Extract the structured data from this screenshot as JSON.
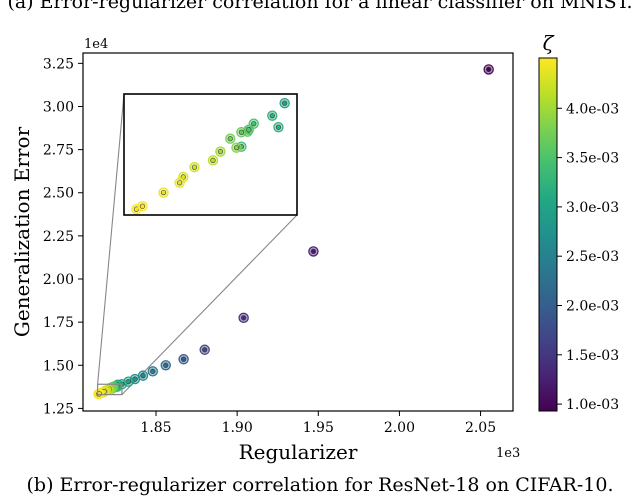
{
  "captions": {
    "top": "(a) Error-regularizer correlation for a linear classifier on MNIST.",
    "bottom": "(b) Error-regularizer correlation for ResNet-18 on CIFAR-10."
  },
  "chart_data": {
    "type": "scatter",
    "title": "",
    "xlabel": "Regularizer",
    "ylabel": "Generalization Error",
    "x_multiplier_label": "1e3",
    "y_multiplier_label": "1e4",
    "xlim": [
      1.805,
      2.07
    ],
    "ylim": [
      1.235,
      3.31
    ],
    "x_ticks": [
      1.85,
      1.9,
      1.95,
      2.0,
      2.05
    ],
    "x_tick_labels": [
      "1.85",
      "1.90",
      "1.95",
      "2.00",
      "2.05"
    ],
    "y_ticks": [
      1.25,
      1.5,
      1.75,
      2.0,
      2.25,
      2.5,
      2.75,
      3.0,
      3.25
    ],
    "y_tick_labels": [
      "1.25",
      "1.50",
      "1.75",
      "2.00",
      "2.25",
      "2.50",
      "2.75",
      "3.00",
      "3.25"
    ],
    "grid": false,
    "colorbar": {
      "label": "ζ",
      "colormap": "viridis",
      "range": [
        0.00093,
        0.00451
      ],
      "ticks": [
        0.001,
        0.0015,
        0.002,
        0.0025,
        0.003,
        0.0035,
        0.004
      ],
      "tick_labels": [
        "1.0e-03",
        "1.5e-03",
        "2.0e-03",
        "2.5e-03",
        "3.0e-03",
        "3.5e-03",
        "4.0e-03"
      ]
    },
    "points": [
      {
        "x": 2.055,
        "y": 3.215,
        "c": 0.00095
      },
      {
        "x": 1.947,
        "y": 2.16,
        "c": 0.0012
      },
      {
        "x": 1.904,
        "y": 1.775,
        "c": 0.0014
      },
      {
        "x": 1.88,
        "y": 1.59,
        "c": 0.00165
      },
      {
        "x": 1.867,
        "y": 1.535,
        "c": 0.0019
      },
      {
        "x": 1.856,
        "y": 1.5,
        "c": 0.00215
      },
      {
        "x": 1.848,
        "y": 1.465,
        "c": 0.0024
      },
      {
        "x": 1.842,
        "y": 1.44,
        "c": 0.0026
      },
      {
        "x": 1.837,
        "y": 1.42,
        "c": 0.00275
      },
      {
        "x": 1.833,
        "y": 1.405,
        "c": 0.0029
      },
      {
        "x": 1.829,
        "y": 1.39,
        "c": 0.00305
      },
      {
        "x": 1.826,
        "y": 1.375,
        "c": 0.0032
      },
      {
        "x": 1.823,
        "y": 1.365,
        "c": 0.0034
      },
      {
        "x": 1.8265,
        "y": 1.3873,
        "c": 0.003
      },
      {
        "x": 1.8255,
        "y": 1.3809,
        "c": 0.0032
      },
      {
        "x": 1.824,
        "y": 1.3768,
        "c": 0.00345
      },
      {
        "x": 1.8235,
        "y": 1.3727,
        "c": 0.0036
      },
      {
        "x": 1.8236,
        "y": 1.3737,
        "c": 0.00355
      },
      {
        "x": 1.823,
        "y": 1.3724,
        "c": 0.00365
      },
      {
        "x": 1.8221,
        "y": 1.3691,
        "c": 0.00375
      },
      {
        "x": 1.8226,
        "y": 1.3645,
        "c": 0.00385
      },
      {
        "x": 1.8213,
        "y": 1.3625,
        "c": 0.004
      },
      {
        "x": 1.8207,
        "y": 1.358,
        "c": 0.00415
      },
      {
        "x": 1.8192,
        "y": 1.3545,
        "c": 0.00425
      },
      {
        "x": 1.8183,
        "y": 1.3495,
        "c": 0.00435
      },
      {
        "x": 1.8167,
        "y": 1.3415,
        "c": 0.0044
      },
      {
        "x": 1.818,
        "y": 1.3465,
        "c": 0.00438
      },
      {
        "x": 1.8145,
        "y": 1.333,
        "c": 0.0045
      },
      {
        "x": 1.815,
        "y": 1.3345,
        "c": 0.00448
      }
    ],
    "inset": {
      "xlim": [
        1.8135,
        1.8275
      ],
      "ylim": [
        1.33,
        1.392
      ],
      "zoom_box_x": [
        1.814,
        1.829
      ],
      "zoom_box_y": [
        1.33,
        1.39
      ]
    }
  }
}
